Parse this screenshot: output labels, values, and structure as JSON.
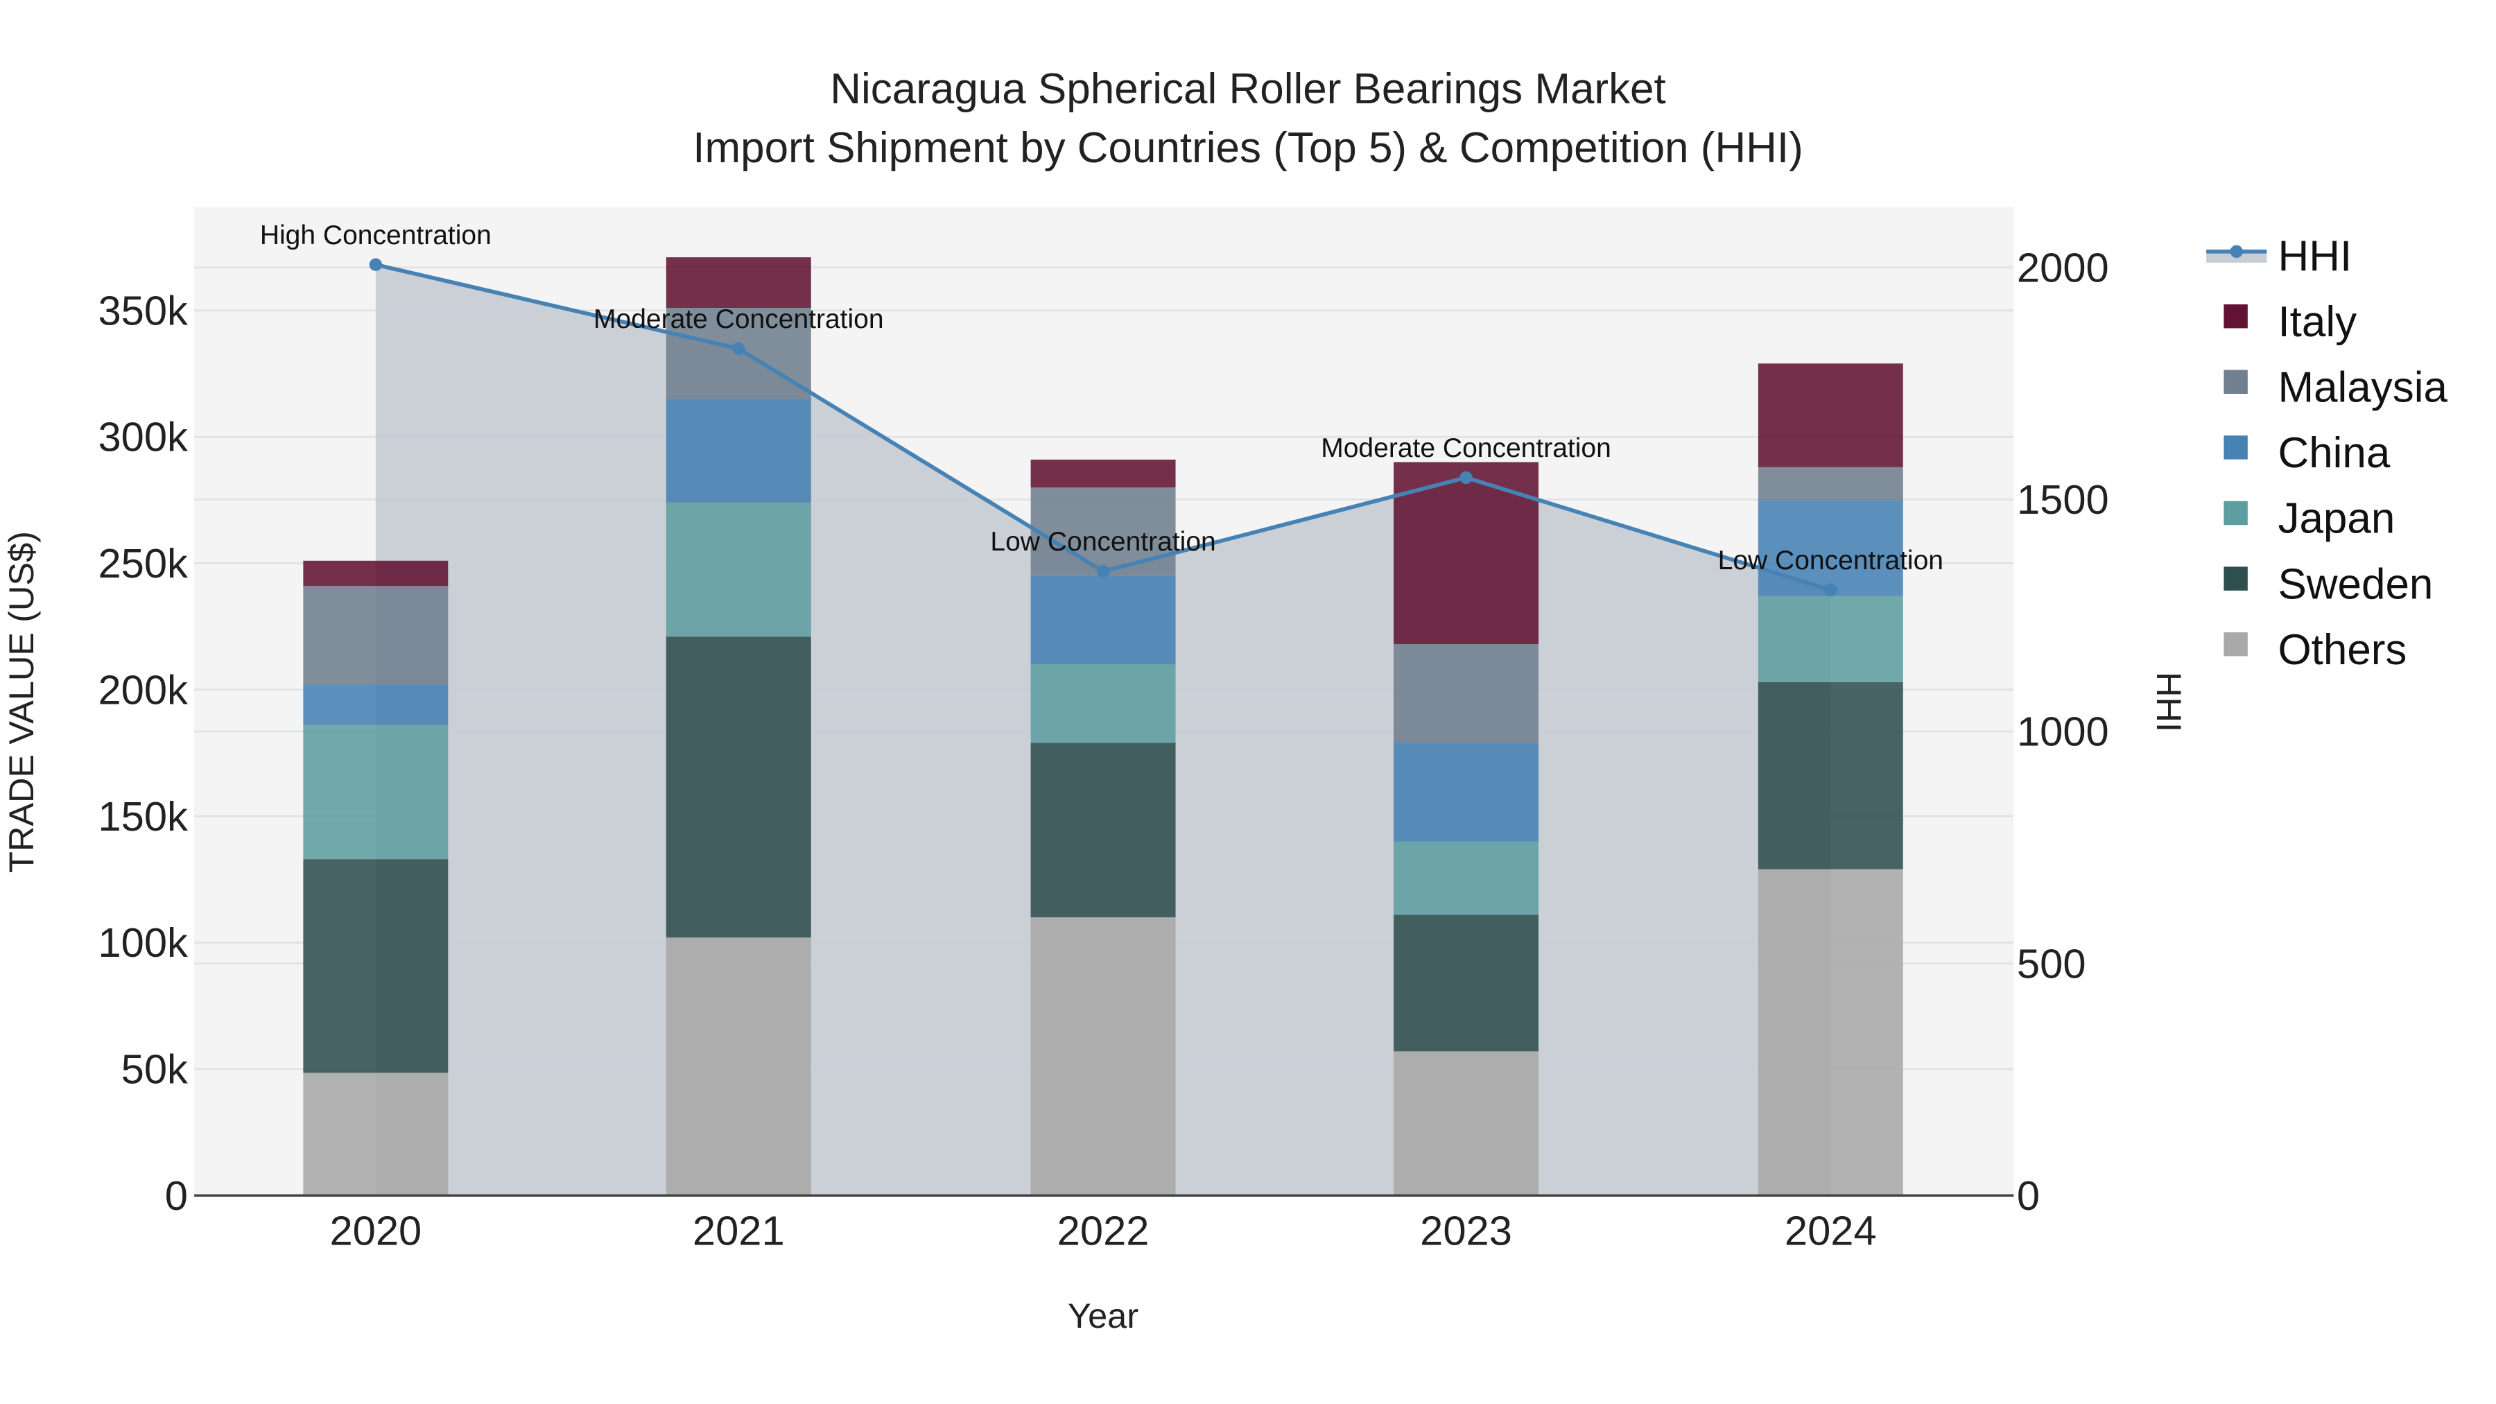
{
  "chart_data": {
    "type": "bar",
    "title": "Nicaragua Spherical Roller Bearings Market",
    "subtitle": "Import Shipment by Countries (Top 5) & Competition (HHI)",
    "xlabel": "Year",
    "ylabel": "TRADE VALUE (US$)",
    "y2label": "HHI",
    "categories": [
      "2020",
      "2021",
      "2022",
      "2023",
      "2024"
    ],
    "ylim": [
      0,
      390000
    ],
    "y2lim": [
      0,
      2140
    ],
    "yticks": [
      0,
      50000,
      100000,
      150000,
      200000,
      250000,
      300000,
      350000
    ],
    "ytick_labels": [
      "0",
      "50k",
      "100k",
      "150k",
      "200k",
      "250k",
      "300k",
      "350k"
    ],
    "y2ticks": [
      0,
      500,
      1000,
      1500,
      2000
    ],
    "y2tick_labels": [
      "0",
      "500",
      "1000",
      "1500",
      "2000"
    ],
    "stacked": true,
    "series": [
      {
        "name": "Others",
        "color": "#a9a9a9",
        "values": [
          48500,
          102000,
          110000,
          57000,
          129000
        ]
      },
      {
        "name": "Sweden",
        "color": "#2f4f4f",
        "values": [
          84500,
          119000,
          69000,
          54000,
          74000
        ]
      },
      {
        "name": "Japan",
        "color": "#5f9ea0",
        "values": [
          53000,
          53000,
          31000,
          29000,
          34000
        ]
      },
      {
        "name": "China",
        "color": "#4682b4",
        "values": [
          16000,
          41000,
          35000,
          39000,
          38000
        ]
      },
      {
        "name": "Malaysia",
        "color": "#708090",
        "values": [
          39000,
          36000,
          35000,
          39000,
          13000
        ]
      },
      {
        "name": "Italy",
        "color": "#621333",
        "values": [
          10000,
          20000,
          11000,
          72000,
          41000
        ]
      }
    ],
    "line_series": {
      "name": "HHI",
      "axis": "y2",
      "color": "#4682b4",
      "fill": "#c8ccd4",
      "values": [
        2006,
        1825,
        1345,
        1547,
        1305
      ]
    },
    "annotations": [
      {
        "year": "2020",
        "text": "High Concentration"
      },
      {
        "year": "2021",
        "text": "Moderate Concentration"
      },
      {
        "year": "2022",
        "text": "Low Concentration"
      },
      {
        "year": "2023",
        "text": "Moderate Concentration"
      },
      {
        "year": "2024",
        "text": "Low Concentration"
      }
    ],
    "legend": [
      "HHI",
      "Italy",
      "Malaysia",
      "China",
      "Japan",
      "Sweden",
      "Others"
    ],
    "legend_position": "right",
    "grid": true
  }
}
